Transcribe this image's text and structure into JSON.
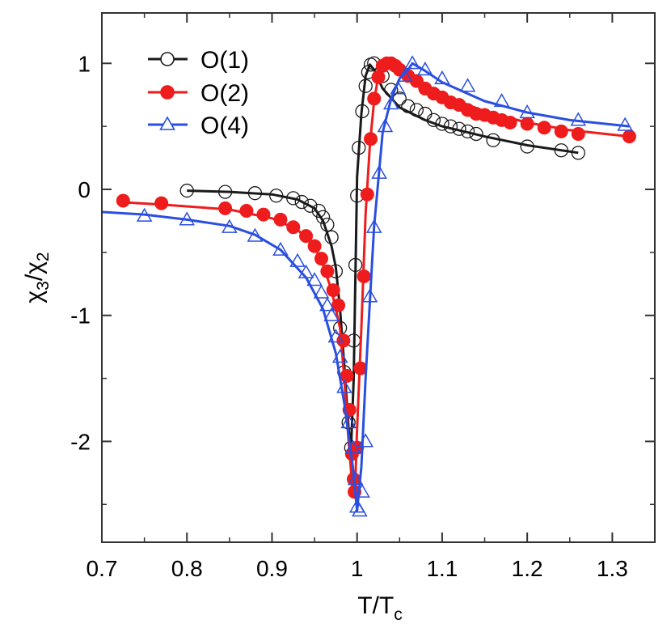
{
  "chart_data": {
    "type": "line",
    "xlabel": "T/T",
    "xlabel_sub": "c",
    "ylabel_parts": [
      "χ",
      "3",
      "/χ",
      "2"
    ],
    "xlim": [
      0.7,
      1.35
    ],
    "ylim": [
      -2.8,
      1.4
    ],
    "xticks": [
      0.7,
      0.8,
      0.9,
      1.0,
      1.1,
      1.2,
      1.3
    ],
    "xtick_labels": [
      "0.7",
      "0.8",
      "0.9",
      "1",
      "1.1",
      "1.2",
      "1.3"
    ],
    "yticks": [
      -2,
      -1,
      0,
      1
    ],
    "ytick_labels": [
      "-2",
      "-1",
      "0",
      "1"
    ],
    "grid": false,
    "legend_position": "top-left",
    "series": [
      {
        "name": "O(1)",
        "color": "#1a1a1a",
        "marker": "open-circle",
        "line": [
          [
            0.8,
            -0.01
          ],
          [
            0.85,
            -0.02
          ],
          [
            0.9,
            -0.04
          ],
          [
            0.93,
            -0.08
          ],
          [
            0.95,
            -0.15
          ],
          [
            0.96,
            -0.25
          ],
          [
            0.97,
            -0.45
          ],
          [
            0.975,
            -0.62
          ],
          [
            0.98,
            -0.95
          ],
          [
            0.985,
            -1.4
          ],
          [
            0.99,
            -1.9
          ],
          [
            0.993,
            -2.05
          ],
          [
            0.996,
            -1.5
          ],
          [
            0.998,
            -0.7
          ],
          [
            1.0,
            0.1
          ],
          [
            1.005,
            0.6
          ],
          [
            1.01,
            0.9
          ],
          [
            1.015,
            0.99
          ],
          [
            1.02,
            0.95
          ],
          [
            1.03,
            0.8
          ],
          [
            1.05,
            0.65
          ],
          [
            1.08,
            0.55
          ],
          [
            1.1,
            0.5
          ],
          [
            1.15,
            0.42
          ],
          [
            1.2,
            0.35
          ],
          [
            1.26,
            0.29
          ]
        ],
        "points": [
          [
            0.8,
            -0.01
          ],
          [
            0.845,
            -0.02
          ],
          [
            0.88,
            -0.03
          ],
          [
            0.905,
            -0.05
          ],
          [
            0.925,
            -0.07
          ],
          [
            0.935,
            -0.1
          ],
          [
            0.945,
            -0.13
          ],
          [
            0.955,
            -0.17
          ],
          [
            0.96,
            -0.22
          ],
          [
            0.965,
            -0.28
          ],
          [
            0.97,
            -0.38
          ],
          [
            0.975,
            -0.65
          ],
          [
            0.98,
            -1.1
          ],
          [
            0.985,
            -1.45
          ],
          [
            0.99,
            -1.85
          ],
          [
            0.993,
            -2.05
          ],
          [
            0.996,
            -1.2
          ],
          [
            0.998,
            -0.6
          ],
          [
            1.0,
            -0.05
          ],
          [
            1.002,
            0.33
          ],
          [
            1.006,
            0.62
          ],
          [
            1.01,
            0.82
          ],
          [
            1.013,
            0.93
          ],
          [
            1.016,
            0.99
          ],
          [
            1.02,
            1.0
          ],
          [
            1.03,
            0.9
          ],
          [
            1.04,
            0.79
          ],
          [
            1.05,
            0.72
          ],
          [
            1.06,
            0.66
          ],
          [
            1.07,
            0.63
          ],
          [
            1.08,
            0.6
          ],
          [
            1.09,
            0.55
          ],
          [
            1.1,
            0.52
          ],
          [
            1.11,
            0.5
          ],
          [
            1.12,
            0.48
          ],
          [
            1.13,
            0.46
          ],
          [
            1.14,
            0.44
          ],
          [
            1.16,
            0.39
          ],
          [
            1.2,
            0.34
          ],
          [
            1.24,
            0.31
          ],
          [
            1.26,
            0.29
          ]
        ]
      },
      {
        "name": "O(2)",
        "color": "#ee1c1c",
        "marker": "filled-circle",
        "line": [
          [
            0.72,
            -0.1
          ],
          [
            0.77,
            -0.12
          ],
          [
            0.85,
            -0.16
          ],
          [
            0.9,
            -0.23
          ],
          [
            0.93,
            -0.32
          ],
          [
            0.95,
            -0.45
          ],
          [
            0.96,
            -0.6
          ],
          [
            0.97,
            -0.8
          ],
          [
            0.98,
            -1.1
          ],
          [
            0.985,
            -1.5
          ],
          [
            0.99,
            -2.0
          ],
          [
            0.995,
            -2.4
          ],
          [
            0.998,
            -2.3
          ],
          [
            1.0,
            -1.9
          ],
          [
            1.005,
            -1.1
          ],
          [
            1.01,
            -0.2
          ],
          [
            1.015,
            0.35
          ],
          [
            1.02,
            0.7
          ],
          [
            1.025,
            0.9
          ],
          [
            1.03,
            0.98
          ],
          [
            1.04,
            1.0
          ],
          [
            1.05,
            0.95
          ],
          [
            1.07,
            0.85
          ],
          [
            1.1,
            0.75
          ],
          [
            1.15,
            0.62
          ],
          [
            1.2,
            0.53
          ],
          [
            1.25,
            0.47
          ],
          [
            1.32,
            0.42
          ]
        ],
        "points": [
          [
            0.725,
            -0.09
          ],
          [
            0.77,
            -0.11
          ],
          [
            0.845,
            -0.15
          ],
          [
            0.87,
            -0.17
          ],
          [
            0.89,
            -0.2
          ],
          [
            0.91,
            -0.24
          ],
          [
            0.925,
            -0.3
          ],
          [
            0.94,
            -0.37
          ],
          [
            0.95,
            -0.45
          ],
          [
            0.958,
            -0.55
          ],
          [
            0.965,
            -0.65
          ],
          [
            0.972,
            -0.8
          ],
          [
            0.978,
            -0.92
          ],
          [
            0.984,
            -1.2
          ],
          [
            0.988,
            -1.48
          ],
          [
            0.991,
            -1.75
          ],
          [
            0.994,
            -2.1
          ],
          [
            0.996,
            -2.3
          ],
          [
            0.997,
            -2.4
          ],
          [
            1.0,
            -2.05
          ],
          [
            1.004,
            -1.42
          ],
          [
            1.008,
            -0.69
          ],
          [
            1.012,
            -0.04
          ],
          [
            1.016,
            0.4
          ],
          [
            1.02,
            0.72
          ],
          [
            1.025,
            0.89
          ],
          [
            1.03,
            0.98
          ],
          [
            1.035,
            1.0
          ],
          [
            1.04,
            1.0
          ],
          [
            1.045,
            0.98
          ],
          [
            1.05,
            0.95
          ],
          [
            1.06,
            0.9
          ],
          [
            1.07,
            0.86
          ],
          [
            1.08,
            0.8
          ],
          [
            1.09,
            0.76
          ],
          [
            1.1,
            0.73
          ],
          [
            1.11,
            0.69
          ],
          [
            1.12,
            0.67
          ],
          [
            1.13,
            0.63
          ],
          [
            1.14,
            0.6
          ],
          [
            1.15,
            0.59
          ],
          [
            1.16,
            0.57
          ],
          [
            1.17,
            0.55
          ],
          [
            1.18,
            0.53
          ],
          [
            1.2,
            0.52
          ],
          [
            1.22,
            0.49
          ],
          [
            1.24,
            0.46
          ],
          [
            1.26,
            0.44
          ],
          [
            1.32,
            0.42
          ]
        ]
      },
      {
        "name": "O(4)",
        "color": "#2a4fe0",
        "marker": "open-triangle",
        "line": [
          [
            0.7,
            -0.18
          ],
          [
            0.75,
            -0.2
          ],
          [
            0.8,
            -0.24
          ],
          [
            0.85,
            -0.29
          ],
          [
            0.88,
            -0.36
          ],
          [
            0.91,
            -0.48
          ],
          [
            0.94,
            -0.7
          ],
          [
            0.96,
            -0.95
          ],
          [
            0.975,
            -1.3
          ],
          [
            0.985,
            -1.7
          ],
          [
            0.995,
            -2.2
          ],
          [
            1.0,
            -2.55
          ],
          [
            1.005,
            -2.2
          ],
          [
            1.01,
            -1.5
          ],
          [
            1.02,
            -0.3
          ],
          [
            1.03,
            0.45
          ],
          [
            1.04,
            0.72
          ],
          [
            1.05,
            0.88
          ],
          [
            1.06,
            0.95
          ],
          [
            1.065,
            1.0
          ],
          [
            1.08,
            0.94
          ],
          [
            1.1,
            0.85
          ],
          [
            1.15,
            0.7
          ],
          [
            1.2,
            0.61
          ],
          [
            1.25,
            0.55
          ],
          [
            1.32,
            0.5
          ]
        ],
        "points": [
          [
            0.75,
            -0.21
          ],
          [
            0.8,
            -0.24
          ],
          [
            0.85,
            -0.3
          ],
          [
            0.88,
            -0.37
          ],
          [
            0.91,
            -0.48
          ],
          [
            0.93,
            -0.57
          ],
          [
            0.94,
            -0.66
          ],
          [
            0.95,
            -0.72
          ],
          [
            0.958,
            -0.82
          ],
          [
            0.965,
            -0.92
          ],
          [
            0.97,
            -1.0
          ],
          [
            0.975,
            -1.17
          ],
          [
            0.98,
            -1.33
          ],
          [
            0.985,
            -1.57
          ],
          [
            0.99,
            -1.85
          ],
          [
            0.995,
            -2.05
          ],
          [
            0.998,
            -2.3
          ],
          [
            1.0,
            -2.52
          ],
          [
            1.003,
            -2.55
          ],
          [
            1.006,
            -2.4
          ],
          [
            1.01,
            -2.0
          ],
          [
            1.015,
            -0.85
          ],
          [
            1.02,
            -0.3
          ],
          [
            1.026,
            0.13
          ],
          [
            1.033,
            0.5
          ],
          [
            1.04,
            0.68
          ],
          [
            1.048,
            0.8
          ],
          [
            1.056,
            0.9
          ],
          [
            1.065,
            1.0
          ],
          [
            1.08,
            0.95
          ],
          [
            1.1,
            0.88
          ],
          [
            1.13,
            0.82
          ],
          [
            1.17,
            0.7
          ],
          [
            1.2,
            0.61
          ],
          [
            1.26,
            0.55
          ],
          [
            1.315,
            0.51
          ]
        ]
      }
    ]
  }
}
